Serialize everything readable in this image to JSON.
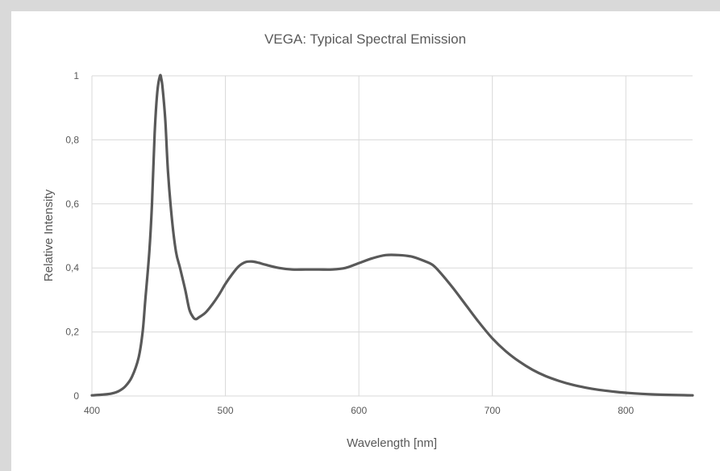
{
  "chart_data": {
    "type": "line",
    "title": "VEGA: Typical Spectral Emission",
    "xlabel": "Wavelength [nm]",
    "ylabel": "Relative Intensity",
    "xlim": [
      400,
      850
    ],
    "ylim": [
      0,
      1
    ],
    "x_ticks": [
      400,
      500,
      600,
      700,
      800
    ],
    "x_tick_labels": [
      "400",
      "500",
      "600",
      "700",
      "800"
    ],
    "y_ticks": [
      0,
      0.2,
      0.4,
      0.6,
      0.8,
      1
    ],
    "y_tick_labels": [
      "0",
      "0,2",
      "0,4",
      "0,6",
      "0,8",
      "1"
    ],
    "grid": true,
    "legend": "none",
    "line_color": "#595959",
    "grid_color": "#d9d9d9",
    "series": [
      {
        "x": [
          400,
          410,
          415,
          420,
          425,
          430,
          435,
          438,
          440,
          443,
          445,
          447,
          449,
          451,
          452,
          453,
          455,
          457,
          460,
          463,
          466,
          470,
          473,
          476,
          478,
          480,
          485,
          490,
          495,
          500,
          505,
          510,
          515,
          520,
          525,
          530,
          540,
          550,
          560,
          570,
          580,
          590,
          600,
          610,
          620,
          630,
          640,
          650,
          655,
          660,
          670,
          680,
          690,
          700,
          710,
          720,
          730,
          740,
          750,
          760,
          770,
          780,
          790,
          800,
          820,
          850
        ],
        "y": [
          0.002,
          0.005,
          0.008,
          0.015,
          0.03,
          0.06,
          0.12,
          0.2,
          0.3,
          0.45,
          0.6,
          0.82,
          0.95,
          1.0,
          0.99,
          0.96,
          0.86,
          0.7,
          0.55,
          0.45,
          0.4,
          0.33,
          0.27,
          0.245,
          0.24,
          0.245,
          0.26,
          0.285,
          0.315,
          0.35,
          0.38,
          0.405,
          0.418,
          0.42,
          0.416,
          0.41,
          0.4,
          0.395,
          0.395,
          0.395,
          0.395,
          0.4,
          0.415,
          0.43,
          0.44,
          0.44,
          0.435,
          0.42,
          0.41,
          0.39,
          0.34,
          0.285,
          0.23,
          0.18,
          0.14,
          0.108,
          0.082,
          0.062,
          0.047,
          0.035,
          0.026,
          0.019,
          0.014,
          0.01,
          0.005,
          0.002
        ]
      }
    ]
  }
}
